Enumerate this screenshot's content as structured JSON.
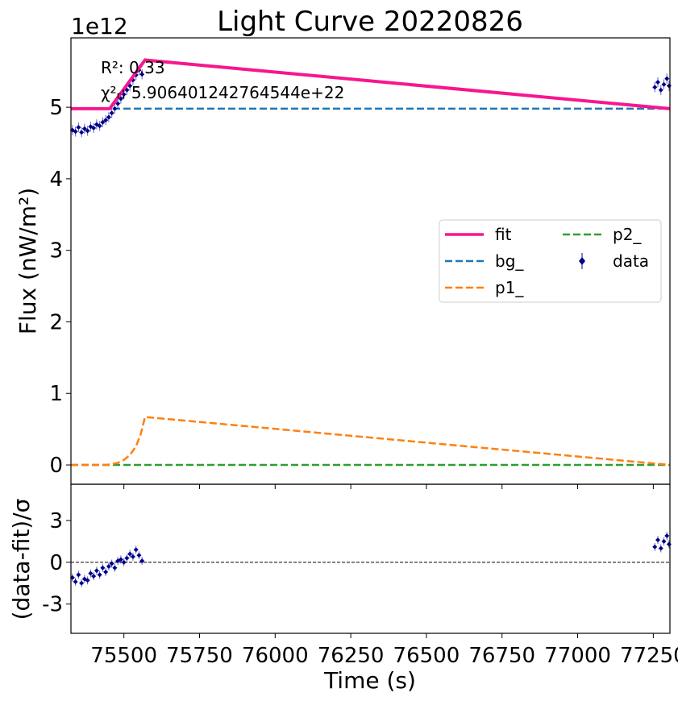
{
  "chart_data": {
    "type": "line",
    "title": "Light Curve 20220826",
    "xlabel": "Time (s)",
    "ylabel_main": "Flux (nW/m²)",
    "ylabel_residual": "(data-fit)/σ",
    "y_offset_text": "1e12",
    "xlim": [
      75325,
      77305
    ],
    "ylim_main": [
      -270000000000.0,
      5970000000000.0
    ],
    "ylim_residual": [
      -5.1,
      5.6
    ],
    "x_ticks": [
      75500,
      75750,
      76000,
      76250,
      76500,
      76750,
      77000,
      77250
    ],
    "x_tick_labels": [
      "75500",
      "75750",
      "76000",
      "76250",
      "76500",
      "76750",
      "77000",
      "77250"
    ],
    "y_ticks_main": [
      0,
      1000000000000.0,
      2000000000000.0,
      3000000000000.0,
      4000000000000.0,
      5000000000000.0
    ],
    "y_tick_labels_main": [
      "0",
      "1",
      "2",
      "3",
      "4",
      "5"
    ],
    "y_ticks_residual": [
      -3,
      0,
      3
    ],
    "y_tick_labels_residual": [
      "-3",
      "0",
      "3"
    ],
    "annotations": {
      "r2": "R²: 0.33",
      "chi2": "χ²ᵣ: 5.906401242764544e+22"
    },
    "legend": {
      "placement": "center-right",
      "entries": [
        "fit",
        "bg_",
        "p1_",
        "p2_",
        "data"
      ]
    },
    "colors": {
      "fit": "#f7168f",
      "bg": "#1f77b4",
      "p1": "#ff7f0e",
      "p2": "#2ca02c",
      "data": "#00008b"
    },
    "series": [
      {
        "name": "fit",
        "x": [
          75325,
          75453,
          75570,
          77305
        ],
        "y": [
          4980000000000.0,
          4980000000000.0,
          5660000000000.0,
          4980000000000.0
        ]
      },
      {
        "name": "bg_",
        "x": [
          75325,
          77305
        ],
        "y": [
          4980000000000.0,
          4980000000000.0
        ]
      },
      {
        "name": "p1_",
        "x": [
          75325,
          75410,
          75440,
          75460,
          75480,
          75500,
          75520,
          75540,
          75555,
          75570,
          77305
        ],
        "y": [
          0,
          0,
          0,
          10000000000.0,
          30000000000.0,
          70000000000.0,
          140000000000.0,
          260000000000.0,
          420000000000.0,
          670000000000.0,
          0
        ]
      },
      {
        "name": "p2_",
        "x": [
          75325,
          77305
        ],
        "y": [
          0,
          0
        ]
      }
    ],
    "data_points": {
      "x": [
        75330,
        75340,
        75350,
        75360,
        75370,
        75380,
        75390,
        75400,
        75410,
        75420,
        75430,
        75440,
        75450,
        75460,
        75470,
        75480,
        75490,
        75500,
        75510,
        75520,
        75530,
        75540,
        75550,
        75560,
        77255,
        77265,
        77275,
        77285,
        77295,
        77302
      ],
      "y": [
        4680000000000.0,
        4660000000000.0,
        4720000000000.0,
        4650000000000.0,
        4700000000000.0,
        4670000000000.0,
        4730000000000.0,
        4710000000000.0,
        4760000000000.0,
        4740000000000.0,
        4790000000000.0,
        4820000000000.0,
        4860000000000.0,
        4920000000000.0,
        4980000000000.0,
        5050000000000.0,
        5120000000000.0,
        5180000000000.0,
        5240000000000.0,
        5300000000000.0,
        5380000000000.0,
        5450000000000.0,
        5520000000000.0,
        5460000000000.0,
        5280000000000.0,
        5350000000000.0,
        5240000000000.0,
        5320000000000.0,
        5400000000000.0,
        5300000000000.0
      ],
      "err": [
        70000000000.0,
        70000000000.0,
        70000000000.0,
        70000000000.0,
        70000000000.0,
        70000000000.0,
        70000000000.0,
        70000000000.0,
        70000000000.0,
        70000000000.0,
        70000000000.0,
        70000000000.0,
        70000000000.0,
        70000000000.0,
        70000000000.0,
        70000000000.0,
        70000000000.0,
        70000000000.0,
        70000000000.0,
        70000000000.0,
        70000000000.0,
        70000000000.0,
        70000000000.0,
        70000000000.0,
        70000000000.0,
        70000000000.0,
        70000000000.0,
        70000000000.0,
        70000000000.0,
        70000000000.0
      ]
    },
    "residuals": {
      "x": [
        75330,
        75340,
        75350,
        75360,
        75370,
        75380,
        75390,
        75400,
        75410,
        75420,
        75430,
        75440,
        75450,
        75460,
        75470,
        75480,
        75490,
        75500,
        75510,
        75520,
        75530,
        75540,
        75550,
        75560,
        77255,
        77265,
        77275,
        77285,
        77295,
        77302
      ],
      "y": [
        -1.1,
        -1.4,
        -0.9,
        -1.5,
        -1.2,
        -1.3,
        -0.8,
        -1.0,
        -0.6,
        -0.9,
        -0.4,
        -0.7,
        -0.3,
        -0.1,
        -0.4,
        0.1,
        0.2,
        0.0,
        0.3,
        0.6,
        0.4,
        0.9,
        0.5,
        0.1,
        1.1,
        1.6,
        1.0,
        1.5,
        1.9,
        1.3
      ]
    },
    "grid": false
  }
}
